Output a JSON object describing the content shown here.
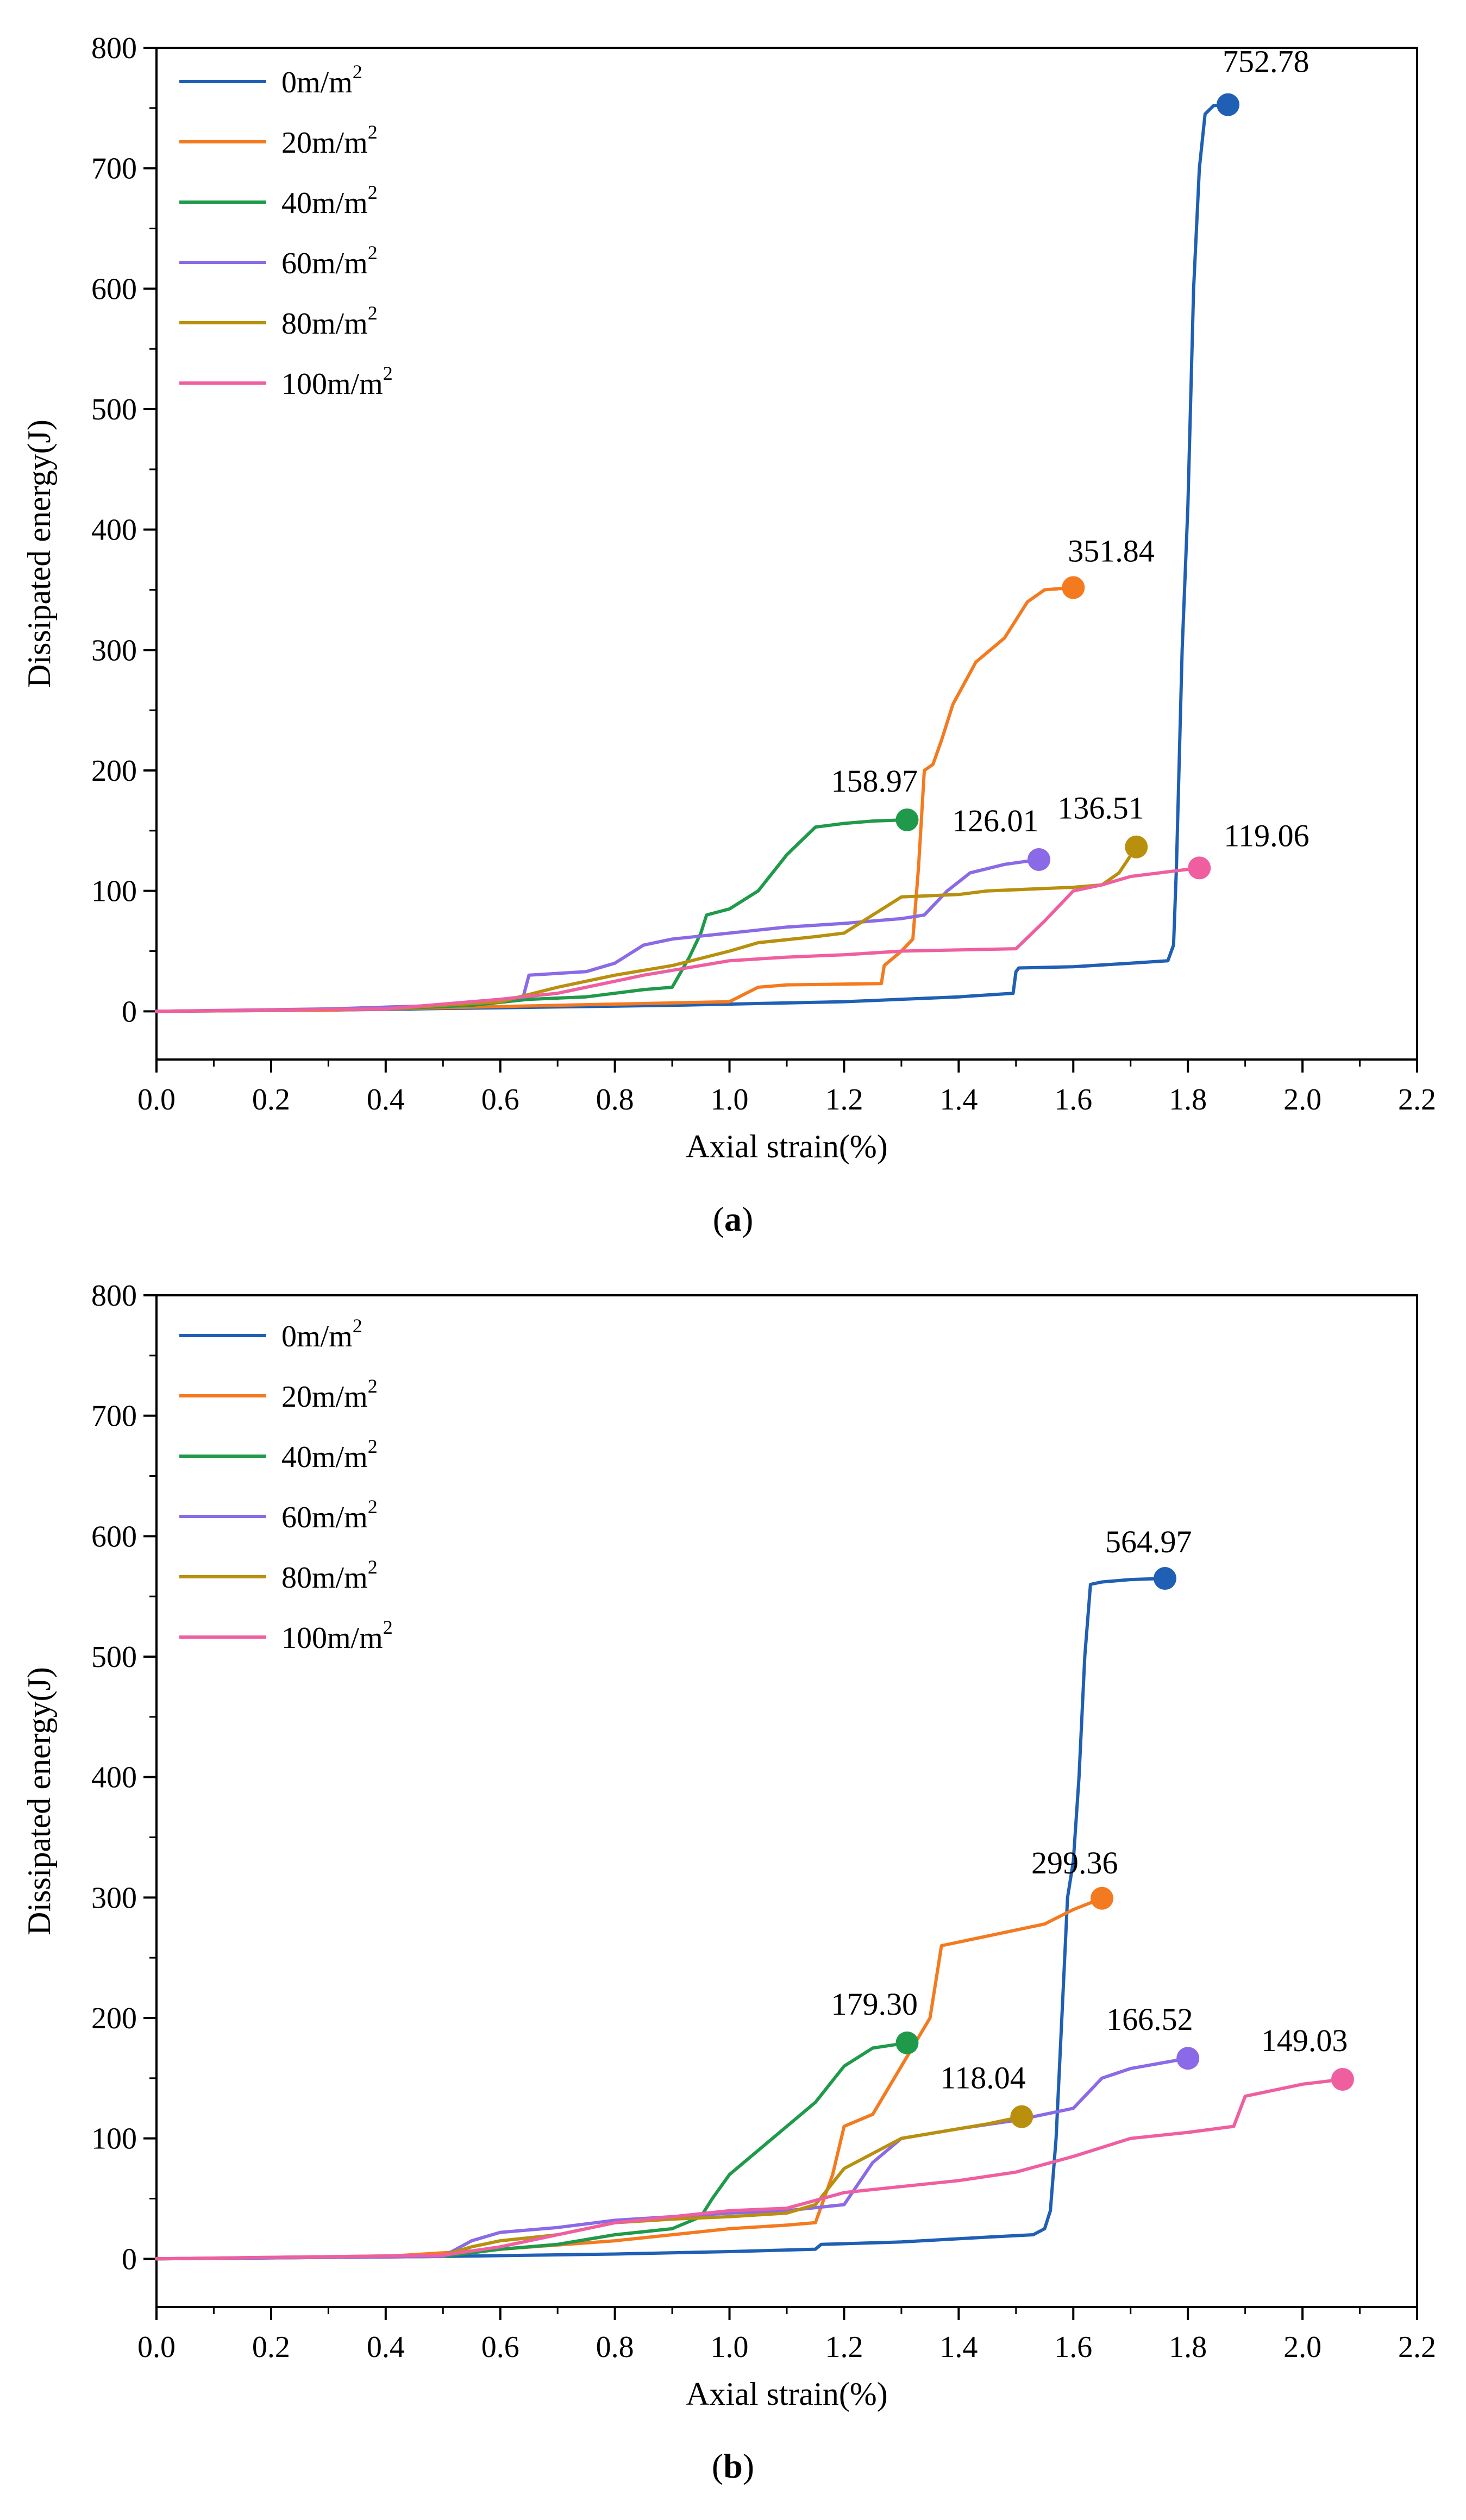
{
  "chart_data": [
    {
      "panel": "a",
      "type": "line",
      "caption_letter": "a",
      "xlabel": "Axial strain(%)",
      "ylabel": "Dissipated energy(J)",
      "xlim": [
        0.0,
        2.2
      ],
      "ylim": [
        -40,
        800
      ],
      "x_ticks": [
        "0.0",
        "0.2",
        "0.4",
        "0.6",
        "0.8",
        "1.0",
        "1.2",
        "1.4",
        "1.6",
        "1.8",
        "2.0",
        "2.2"
      ],
      "y_ticks": [
        "0",
        "100",
        "200",
        "300",
        "400",
        "500",
        "600",
        "700",
        "800"
      ],
      "legend_position": "top-left",
      "series": [
        {
          "name": "0m/m",
          "unit_sup": "2",
          "color": "#1f5fb4",
          "points": [
            [
              0,
              0
            ],
            [
              0.3,
              1
            ],
            [
              0.6,
              3
            ],
            [
              0.9,
              5
            ],
            [
              1.2,
              8
            ],
            [
              1.4,
              12
            ],
            [
              1.495,
              15
            ],
            [
              1.5,
              33
            ],
            [
              1.505,
              36
            ],
            [
              1.6,
              37
            ],
            [
              1.7,
              40
            ],
            [
              1.765,
              42
            ],
            [
              1.775,
              55
            ],
            [
              1.78,
              120
            ],
            [
              1.79,
              300
            ],
            [
              1.8,
              420
            ],
            [
              1.81,
              600
            ],
            [
              1.82,
              700
            ],
            [
              1.83,
              745
            ],
            [
              1.845,
              752
            ],
            [
              1.87,
              752.78
            ]
          ],
          "end_label": "752.78",
          "end_point": [
            1.87,
            752.78
          ]
        },
        {
          "name": "20m/m",
          "unit_sup": "2",
          "color": "#f47a20",
          "points": [
            [
              0,
              0
            ],
            [
              0.3,
              1
            ],
            [
              0.5,
              3
            ],
            [
              0.7,
              5
            ],
            [
              1.0,
              8
            ],
            [
              1.05,
              20
            ],
            [
              1.1,
              22
            ],
            [
              1.265,
              23
            ],
            [
              1.27,
              38
            ],
            [
              1.3,
              50
            ],
            [
              1.32,
              60
            ],
            [
              1.33,
              120
            ],
            [
              1.34,
              200
            ],
            [
              1.355,
              205
            ],
            [
              1.37,
              225
            ],
            [
              1.39,
              255
            ],
            [
              1.43,
              290
            ],
            [
              1.48,
              310
            ],
            [
              1.52,
              340
            ],
            [
              1.55,
              350
            ],
            [
              1.6,
              351.84
            ]
          ],
          "end_label": "351.84",
          "end_point": [
            1.6,
            351.84
          ]
        },
        {
          "name": "40m/m",
          "unit_sup": "2",
          "color": "#1f9a4a",
          "points": [
            [
              0,
              0
            ],
            [
              0.4,
              2
            ],
            [
              0.55,
              5
            ],
            [
              0.65,
              10
            ],
            [
              0.75,
              12
            ],
            [
              0.85,
              18
            ],
            [
              0.9,
              20
            ],
            [
              0.93,
              45
            ],
            [
              0.95,
              65
            ],
            [
              0.96,
              80
            ],
            [
              1.0,
              85
            ],
            [
              1.05,
              100
            ],
            [
              1.1,
              130
            ],
            [
              1.15,
              153
            ],
            [
              1.2,
              156
            ],
            [
              1.25,
              158
            ],
            [
              1.31,
              158.97
            ]
          ],
          "end_label": "158.97",
          "end_point": [
            1.31,
            158.97
          ]
        },
        {
          "name": "60m/m",
          "unit_sup": "2",
          "color": "#8a6ae6",
          "points": [
            [
              0,
              0
            ],
            [
              0.3,
              2
            ],
            [
              0.5,
              5
            ],
            [
              0.6,
              10
            ],
            [
              0.64,
              12
            ],
            [
              0.65,
              30
            ],
            [
              0.75,
              33
            ],
            [
              0.8,
              40
            ],
            [
              0.85,
              55
            ],
            [
              0.9,
              60
            ],
            [
              1.0,
              65
            ],
            [
              1.1,
              70
            ],
            [
              1.2,
              73
            ],
            [
              1.3,
              77
            ],
            [
              1.34,
              80
            ],
            [
              1.38,
              100
            ],
            [
              1.42,
              115
            ],
            [
              1.48,
              122
            ],
            [
              1.54,
              126.01
            ]
          ],
          "end_label": "126.01",
          "end_point": [
            1.54,
            126.01
          ]
        },
        {
          "name": "80m/m",
          "unit_sup": "2",
          "color": "#b8900e",
          "points": [
            [
              0,
              0
            ],
            [
              0.4,
              2
            ],
            [
              0.6,
              8
            ],
            [
              0.7,
              20
            ],
            [
              0.8,
              30
            ],
            [
              0.9,
              38
            ],
            [
              1.0,
              50
            ],
            [
              1.05,
              57
            ],
            [
              1.15,
              62
            ],
            [
              1.2,
              65
            ],
            [
              1.25,
              80
            ],
            [
              1.3,
              95
            ],
            [
              1.4,
              97
            ],
            [
              1.45,
              100
            ],
            [
              1.6,
              103
            ],
            [
              1.65,
              105
            ],
            [
              1.68,
              115
            ],
            [
              1.71,
              136.51
            ]
          ],
          "end_label": "136.51",
          "end_point": [
            1.71,
            136.51
          ]
        },
        {
          "name": "100m/m",
          "unit_sup": "2",
          "color": "#ef5fa0",
          "points": [
            [
              0,
              0
            ],
            [
              0.4,
              2
            ],
            [
              0.6,
              10
            ],
            [
              0.7,
              15
            ],
            [
              0.8,
              25
            ],
            [
              0.85,
              30
            ],
            [
              0.95,
              38
            ],
            [
              1.0,
              42
            ],
            [
              1.1,
              45
            ],
            [
              1.2,
              47
            ],
            [
              1.3,
              50
            ],
            [
              1.5,
              52
            ],
            [
              1.55,
              75
            ],
            [
              1.6,
              100
            ],
            [
              1.65,
              105
            ],
            [
              1.7,
              112
            ],
            [
              1.82,
              119.06
            ]
          ],
          "end_label": "119.06",
          "end_point": [
            1.82,
            119.06
          ]
        }
      ]
    },
    {
      "panel": "b",
      "type": "line",
      "caption_letter": "b",
      "xlabel": "Axial strain(%)",
      "ylabel": "Dissipated energy(J)",
      "xlim": [
        0.0,
        2.2
      ],
      "ylim": [
        -40,
        800
      ],
      "x_ticks": [
        "0.0",
        "0.2",
        "0.4",
        "0.6",
        "0.8",
        "1.0",
        "1.2",
        "1.4",
        "1.6",
        "1.8",
        "2.0",
        "2.2"
      ],
      "y_ticks": [
        "0",
        "100",
        "200",
        "300",
        "400",
        "500",
        "600",
        "700",
        "800"
      ],
      "legend_position": "top-left",
      "series": [
        {
          "name": "0m/m",
          "unit_sup": "2",
          "color": "#1f5fb4",
          "points": [
            [
              0,
              0
            ],
            [
              0.5,
              2
            ],
            [
              0.8,
              4
            ],
            [
              1.0,
              6
            ],
            [
              1.15,
              8
            ],
            [
              1.16,
              12
            ],
            [
              1.3,
              14
            ],
            [
              1.45,
              18
            ],
            [
              1.53,
              20
            ],
            [
              1.55,
              25
            ],
            [
              1.56,
              40
            ],
            [
              1.57,
              100
            ],
            [
              1.58,
              200
            ],
            [
              1.59,
              300
            ],
            [
              1.6,
              330
            ],
            [
              1.61,
              400
            ],
            [
              1.62,
              500
            ],
            [
              1.63,
              560
            ],
            [
              1.65,
              562
            ],
            [
              1.7,
              564
            ],
            [
              1.76,
              564.97
            ]
          ],
          "end_label": "564.97",
          "end_point": [
            1.76,
            564.97
          ]
        },
        {
          "name": "20m/m",
          "unit_sup": "2",
          "color": "#f47a20",
          "points": [
            [
              0,
              0
            ],
            [
              0.4,
              2
            ],
            [
              0.6,
              8
            ],
            [
              0.8,
              15
            ],
            [
              1.0,
              25
            ],
            [
              1.1,
              28
            ],
            [
              1.15,
              30
            ],
            [
              1.18,
              70
            ],
            [
              1.2,
              110
            ],
            [
              1.25,
              120
            ],
            [
              1.3,
              160
            ],
            [
              1.35,
              200
            ],
            [
              1.37,
              260
            ],
            [
              1.45,
              268
            ],
            [
              1.55,
              278
            ],
            [
              1.6,
              290
            ],
            [
              1.65,
              299.36
            ]
          ],
          "end_label": "299.36",
          "end_point": [
            1.65,
            299.36
          ]
        },
        {
          "name": "40m/m",
          "unit_sup": "2",
          "color": "#1f9a4a",
          "points": [
            [
              0,
              0
            ],
            [
              0.5,
              2
            ],
            [
              0.6,
              8
            ],
            [
              0.7,
              12
            ],
            [
              0.8,
              20
            ],
            [
              0.9,
              25
            ],
            [
              0.95,
              35
            ],
            [
              0.97,
              50
            ],
            [
              1.0,
              70
            ],
            [
              1.05,
              90
            ],
            [
              1.1,
              110
            ],
            [
              1.15,
              130
            ],
            [
              1.2,
              160
            ],
            [
              1.25,
              175
            ],
            [
              1.31,
              179.3
            ]
          ],
          "end_label": "179.30",
          "end_point": [
            1.31,
            179.3
          ]
        },
        {
          "name": "60m/m",
          "unit_sup": "2",
          "color": "#8a6ae6",
          "points": [
            [
              0,
              0
            ],
            [
              0.5,
              2
            ],
            [
              0.55,
              15
            ],
            [
              0.6,
              22
            ],
            [
              0.7,
              26
            ],
            [
              0.8,
              32
            ],
            [
              0.9,
              35
            ],
            [
              1.0,
              38
            ],
            [
              1.1,
              40
            ],
            [
              1.2,
              45
            ],
            [
              1.25,
              80
            ],
            [
              1.3,
              100
            ],
            [
              1.4,
              108
            ],
            [
              1.5,
              115
            ],
            [
              1.6,
              125
            ],
            [
              1.65,
              150
            ],
            [
              1.7,
              158
            ],
            [
              1.8,
              166.52
            ]
          ],
          "end_label": "166.52",
          "end_point": [
            1.8,
            166.52
          ]
        },
        {
          "name": "80m/m",
          "unit_sup": "2",
          "color": "#b8900e",
          "points": [
            [
              0,
              0
            ],
            [
              0.5,
              3
            ],
            [
              0.55,
              10
            ],
            [
              0.6,
              15
            ],
            [
              0.7,
              20
            ],
            [
              0.8,
              30
            ],
            [
              0.9,
              33
            ],
            [
              1.0,
              35
            ],
            [
              1.1,
              38
            ],
            [
              1.15,
              45
            ],
            [
              1.2,
              75
            ],
            [
              1.3,
              100
            ],
            [
              1.4,
              108
            ],
            [
              1.45,
              112
            ],
            [
              1.51,
              118.04
            ]
          ],
          "end_label": "118.04",
          "end_point": [
            1.51,
            118.04
          ]
        },
        {
          "name": "100m/m",
          "unit_sup": "2",
          "color": "#ef5fa0",
          "points": [
            [
              0,
              0
            ],
            [
              0.5,
              3
            ],
            [
              0.6,
              10
            ],
            [
              0.7,
              20
            ],
            [
              0.8,
              30
            ],
            [
              0.9,
              35
            ],
            [
              1.0,
              40
            ],
            [
              1.1,
              42
            ],
            [
              1.2,
              55
            ],
            [
              1.3,
              60
            ],
            [
              1.4,
              65
            ],
            [
              1.5,
              72
            ],
            [
              1.6,
              85
            ],
            [
              1.7,
              100
            ],
            [
              1.8,
              105
            ],
            [
              1.88,
              110
            ],
            [
              1.9,
              135
            ],
            [
              2.0,
              145
            ],
            [
              2.07,
              149.03
            ]
          ],
          "end_label": "149.03",
          "end_point": [
            2.07,
            149.03
          ]
        }
      ]
    }
  ]
}
